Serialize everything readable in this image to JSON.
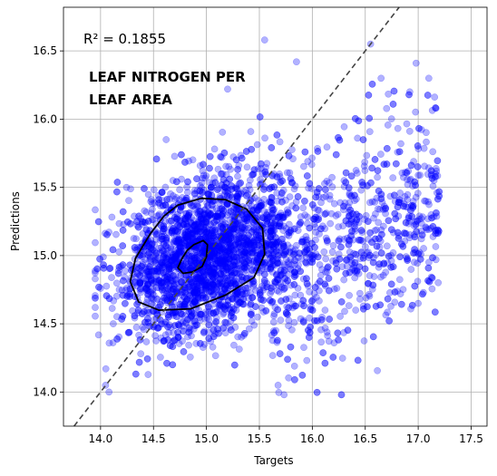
{
  "chart_data": {
    "type": "scatter",
    "title": "",
    "annotations": {
      "r2": "R² = 0.1855",
      "trait_line1": "LEAF NITROGEN PER",
      "trait_line2": "LEAF AREA"
    },
    "xlabel": "Targets",
    "ylabel": "Predictions",
    "xlim": [
      13.65,
      17.65
    ],
    "ylim": [
      13.75,
      16.82
    ],
    "xticks": [
      "14.0",
      "14.5",
      "15.0",
      "15.5",
      "16.0",
      "16.5",
      "17.0",
      "17.5"
    ],
    "yticks": [
      "14.0",
      "14.5",
      "15.0",
      "15.5",
      "16.0",
      "16.5"
    ],
    "grid": true,
    "identity_line": true,
    "point_color": "#0000ff",
    "n_points": 3800,
    "point_distribution": {
      "center": [
        15.0,
        15.0
      ],
      "x_std": 0.42,
      "y_std": 0.28,
      "x_range": [
        13.95,
        17.2
      ],
      "y_range": [
        13.98,
        16.58
      ]
    },
    "sample_points": [
      [
        15.55,
        16.58
      ],
      [
        16.55,
        16.55
      ],
      [
        16.98,
        16.41
      ],
      [
        15.85,
        16.42
      ],
      [
        16.65,
        16.3
      ],
      [
        16.92,
        16.2
      ],
      [
        15.2,
        16.22
      ],
      [
        14.38,
        14.28
      ],
      [
        14.05,
        14.17
      ],
      [
        14.08,
        14.0
      ],
      [
        14.12,
        14.5
      ],
      [
        14.62,
        15.85
      ],
      [
        17.1,
        16.3
      ],
      [
        17.15,
        15.55
      ],
      [
        17.0,
        14.65
      ],
      [
        16.12,
        14.6
      ],
      [
        16.38,
        14.9
      ],
      [
        15.65,
        14.8
      ],
      [
        14.0,
        14.76
      ],
      [
        17.12,
        15.2
      ]
    ],
    "kde_contours": [
      [
        [
          14.73,
          15.37
        ],
        [
          14.95,
          15.42
        ],
        [
          15.18,
          15.41
        ],
        [
          15.38,
          15.34
        ],
        [
          15.53,
          15.2
        ],
        [
          15.55,
          15.01
        ],
        [
          15.45,
          14.84
        ],
        [
          15.18,
          14.71
        ],
        [
          14.85,
          14.61
        ],
        [
          14.55,
          14.6
        ],
        [
          14.36,
          14.66
        ],
        [
          14.28,
          14.81
        ],
        [
          14.33,
          14.98
        ],
        [
          14.47,
          15.16
        ],
        [
          14.6,
          15.29
        ]
      ],
      [
        [
          14.88,
          15.08
        ],
        [
          14.97,
          15.11
        ],
        [
          15.01,
          15.08
        ],
        [
          15.0,
          14.99
        ],
        [
          14.96,
          14.92
        ],
        [
          14.87,
          14.88
        ],
        [
          14.78,
          14.87
        ],
        [
          14.73,
          14.91
        ],
        [
          14.77,
          14.98
        ],
        [
          14.82,
          15.04
        ]
      ]
    ]
  }
}
